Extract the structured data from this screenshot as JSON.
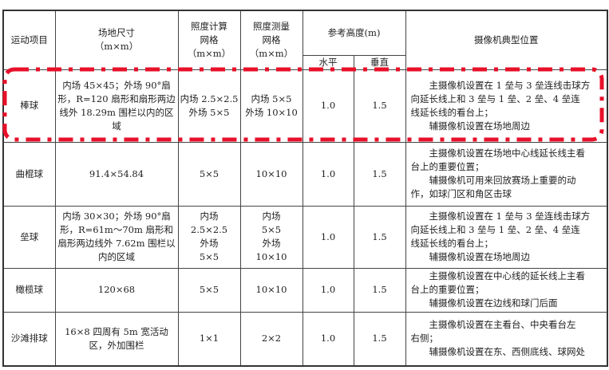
{
  "header": {
    "sport": "运动项目",
    "field_size": "场地尺寸\n（m×m）",
    "calc_grid": "照度计算\n网格\n（m×m）",
    "measure_grid": "照度测量\n网格\n（m×m）",
    "ref_height": "参考高度(m)",
    "horizontal": "水平",
    "vertical": "垂直",
    "camera_position": "摄像机典型位置"
  },
  "rows": [
    {
      "sport": "棒球",
      "field_size": "内场 45×45；外场 90°扇形，R=120 扇形和扇形两边线外 18.29m 围栏以内的区域",
      "calc_grid": "内场 2.5×2.5\n外场 5×5",
      "measure_grid": "内场 5×5\n外场 10×10",
      "horizontal": "1.0",
      "vertical": "1.5",
      "camera": [
        "主摄像机设置在 1 垒与 3 垒连线击球方",
        "向延长线上和 3 垒与 1 垒、2 垒、4 垒连",
        "线延长线的看台上；",
        "辅摄像机设置在场地周边"
      ],
      "highlighted": true
    },
    {
      "sport": "曲棍球",
      "field_size": "91.4×54.84",
      "calc_grid": "5×5",
      "measure_grid": "10×10",
      "horizontal": "1.0",
      "vertical": "1.5",
      "camera": [
        "主摄像机设置在场地中心线延长线主看",
        "台上的重要位置；",
        "辅摄像机可用来回放赛场上重要的动",
        "作，如球门区和角区击球"
      ]
    },
    {
      "sport": "垒球",
      "field_size": "内场 30×30；外场 90°扇形，R=61m～70m 扇形和扇形两边线外 7.62m 围栏以内的区域",
      "calc_grid": "内场\n2.5×2.5\n外场\n5×5",
      "measure_grid": "内场\n5×5\n外场\n10×10",
      "horizontal": "1.0",
      "vertical": "1.5",
      "camera": [
        "主摄像机设置在 1 垒与 3 垒连线击球方",
        "向延长线上和 3 垒与 1 垒、2 垒、4 垒连",
        "线延长线的看台上；",
        "辅摄像机设置在场地周边"
      ]
    },
    {
      "sport": "橄榄球",
      "field_size": "120×68",
      "calc_grid": "5×5",
      "measure_grid": "10×10",
      "horizontal": "1.0",
      "vertical": "1.5",
      "camera": [
        "主摄像机设置在中心线的延长线上主看",
        "台上的重要位置；",
        "辅摄像机设置在边线和球门后面"
      ]
    },
    {
      "sport": "沙滩排球",
      "field_size": "16×8 四周有 5m 宽活动区，外加围栏",
      "calc_grid": "1×1",
      "measure_grid": "2×2",
      "horizontal": "1.0",
      "vertical": "1.5",
      "camera": [
        "主摄像机设置在主看台、中央看台左",
        "右侧；",
        "辅摄像机设置在东、西侧底线、球网处"
      ]
    }
  ],
  "highlight_color": "#e8102a"
}
